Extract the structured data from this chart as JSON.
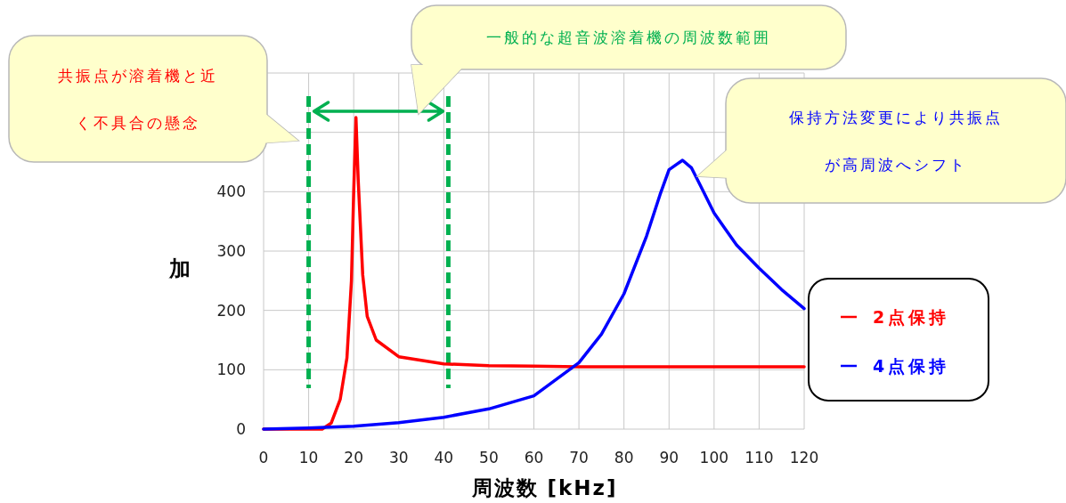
{
  "chart_data": {
    "type": "line",
    "xlabel": "周波数 [kHz]",
    "ylabel": "加",
    "xlim": [
      0,
      120
    ],
    "xticks": [
      0,
      10,
      20,
      30,
      40,
      50,
      60,
      70,
      80,
      90,
      100,
      110,
      120
    ],
    "ylim": [
      0,
      600
    ],
    "yticks": [
      0,
      100,
      200,
      300,
      400,
      {
        "value": 500,
        "label": null
      },
      {
        "value": 600,
        "label": null
      }
    ],
    "grid": true,
    "legend": "right",
    "line_style": "solid",
    "marker": "none",
    "series": [
      {
        "name": "2点保持",
        "color": "#ff0000",
        "x": [
          0,
          13,
          15,
          17,
          18.5,
          19.5,
          20,
          20.5,
          21,
          22,
          23,
          25,
          30,
          40,
          50,
          60,
          70,
          120
        ],
        "values": [
          0,
          0,
          10,
          50,
          120,
          250,
          400,
          525,
          420,
          260,
          190,
          150,
          122,
          110,
          107,
          106,
          105,
          105
        ]
      },
      {
        "name": "4点保持",
        "color": "#0000ff",
        "x": [
          0,
          10,
          20,
          30,
          40,
          50,
          60,
          70,
          75,
          80,
          85,
          88,
          90,
          93,
          95,
          97,
          100,
          105,
          110,
          115,
          120
        ],
        "values": [
          0,
          2,
          5,
          11,
          20,
          34,
          56,
          112,
          160,
          228,
          325,
          395,
          437,
          453,
          440,
          410,
          364,
          310,
          271,
          235,
          203
        ]
      }
    ],
    "ref_lines": [
      {
        "axis": "x",
        "value": 10,
        "color": "#00b050",
        "line_style": "dashed"
      },
      {
        "axis": "x",
        "value": 41,
        "color": "#00b050",
        "line_style": "dashed"
      }
    ],
    "annotations": [
      "共振点が溶着機と近く不具合の懸念",
      "一般的な超音波溶着機の周波数範囲",
      "保持方法変更により共振点が高周波へシフト"
    ]
  }
}
